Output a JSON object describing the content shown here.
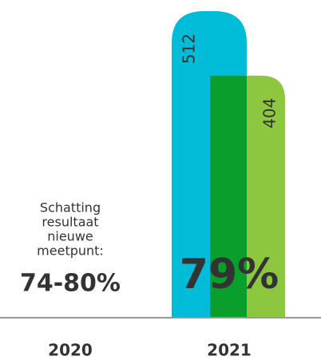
{
  "chart_data": {
    "type": "bar",
    "categories": [
      "2020",
      "2021"
    ],
    "series": [
      {
        "color": "#00bcd9",
        "values": [
          null,
          512
        ]
      },
      {
        "color": "#8dc63f",
        "values": [
          null,
          404
        ]
      }
    ],
    "overlap_color": "#0a9e2c",
    "annotation": {
      "lines": [
        "Schatting",
        "resultaat",
        "nieuwe",
        "meetpunt:"
      ],
      "value": "74-80%"
    },
    "highlight": "79%"
  }
}
